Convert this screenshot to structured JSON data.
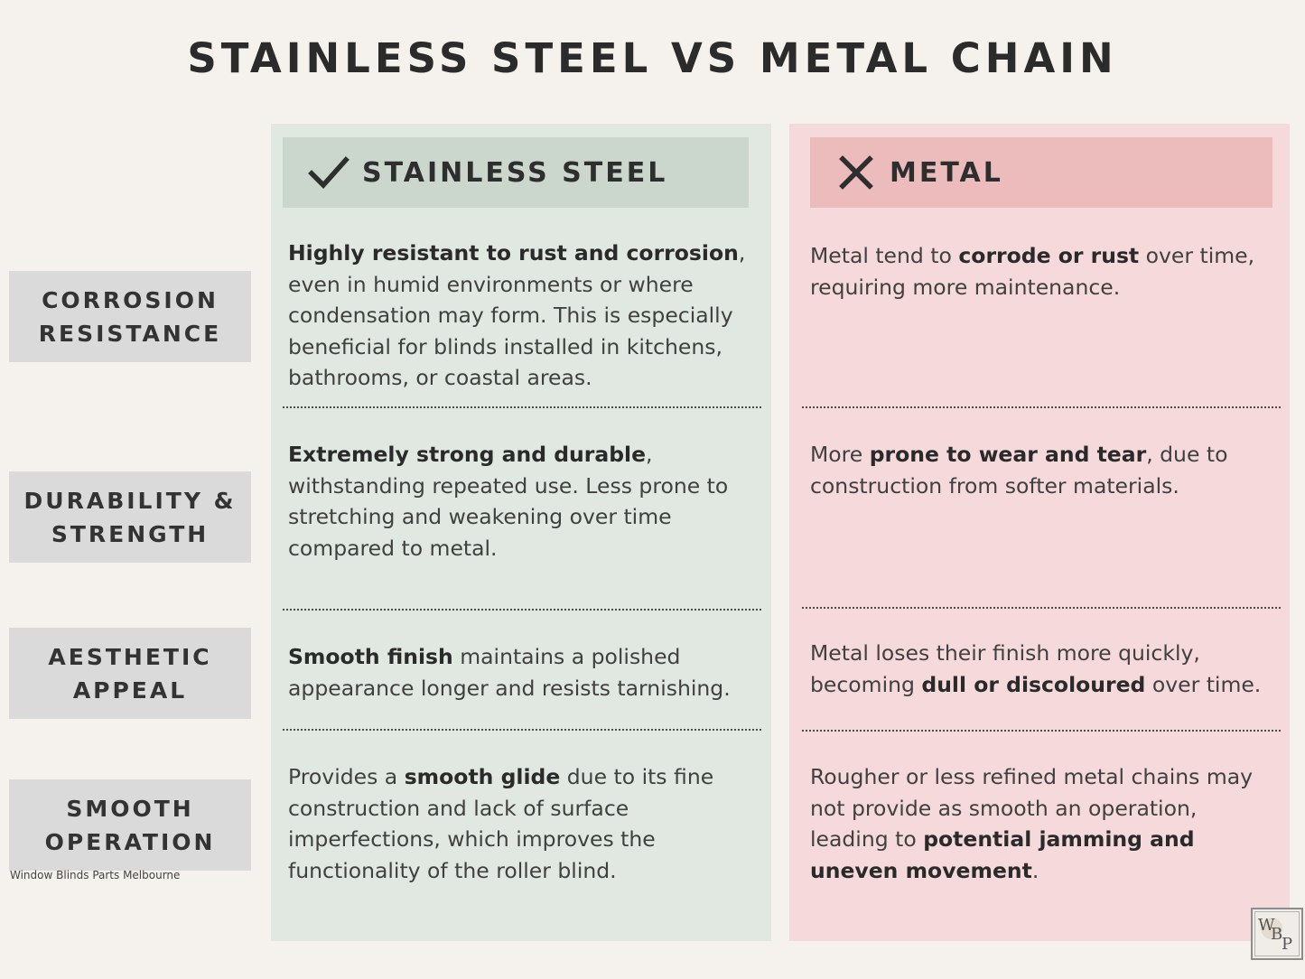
{
  "title": "STAINLESS STEEL VS METAL CHAIN",
  "columns": {
    "stainless": {
      "heading": "STAINLESS STEEL",
      "icon": "check-icon"
    },
    "metal": {
      "heading": "METAL",
      "icon": "x-icon"
    }
  },
  "rows": [
    {
      "label": "CORROSION RESISTANCE",
      "stainless": {
        "bold": "Highly resistant to rust and corrosion",
        "after": ", even in humid environments or where condensation may form. This is especially beneficial for blinds installed in kitchens, bathrooms, or coastal areas."
      },
      "metal": {
        "before": "Metal tend to ",
        "bold": "corrode or rust",
        "after": " over time, requiring more maintenance."
      }
    },
    {
      "label": "DURABILITY & STRENGTH",
      "stainless": {
        "bold": "Extremely strong and durable",
        "after": ", withstanding repeated use. Less prone to stretching and weakening over time compared to metal."
      },
      "metal": {
        "before": "More ",
        "bold": "prone to wear and tear",
        "after": ", due to construction from softer materials."
      }
    },
    {
      "label": "AESTHETIC APPEAL",
      "stainless": {
        "bold": "Smooth finish",
        "after": " maintains a polished appearance longer and resists tarnishing."
      },
      "metal": {
        "before": "Metal loses their finish more quickly, becoming ",
        "bold": "dull or discoloured",
        "after": " over time."
      }
    },
    {
      "label": "SMOOTH OPERATION",
      "stainless": {
        "before": "Provides a ",
        "bold": "smooth glide",
        "after": " due to its fine construction and lack of surface imperfections, which improves the functionality of the roller blind."
      },
      "metal": {
        "before": "Rougher or less refined metal chains may not provide as smooth an operation, leading to ",
        "bold": "potential jamming and uneven movement",
        "after": "."
      }
    }
  ],
  "footer": "Window Blinds Parts Melbourne",
  "logo_text": "WBP",
  "colors": {
    "background": "#f5f1ec",
    "stainless_column": "#e1e7e1",
    "stainless_header": "#cbd6cc",
    "metal_column": "#f5d9db",
    "metal_header": "#ecbcbd",
    "label_box": "#dadada"
  }
}
